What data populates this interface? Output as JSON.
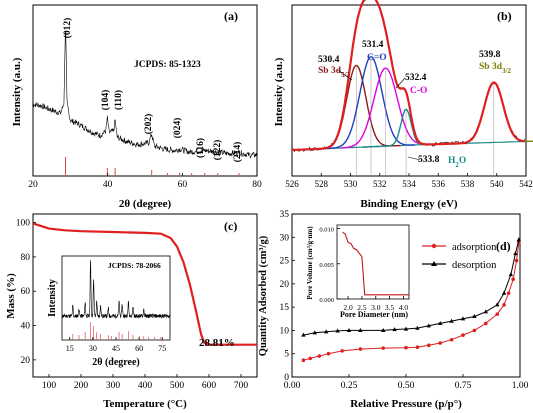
{
  "chart_data": [
    {
      "panel": "(a)",
      "type": "line",
      "xlabel": "2θ (degree)",
      "ylabel": "Intensity (a.u.)",
      "xlim": [
        20,
        80
      ],
      "xticks": [
        20,
        40,
        60,
        80
      ],
      "reference_label": "JCPDS: 85-1323",
      "peaks": [
        {
          "label": "(012)",
          "x": 28.7
        },
        {
          "label": "(104)",
          "x": 39.9
        },
        {
          "label": "(110)",
          "x": 42.0
        },
        {
          "label": "(202)",
          "x": 51.8
        },
        {
          "label": "(024)",
          "x": 59.3
        },
        {
          "label": "(116)",
          "x": 66.0
        },
        {
          "label": "(122)",
          "x": 69.5
        },
        {
          "label": "(214)",
          "x": 75.2
        }
      ],
      "series": [
        {
          "values_relative": [
            [
              20,
              0.44
            ],
            [
              22,
              0.43
            ],
            [
              24,
              0.41
            ],
            [
              26,
              0.39
            ],
            [
              27.5,
              0.38
            ],
            [
              28.3,
              0.45
            ],
            [
              28.7,
              1.0
            ],
            [
              29.1,
              0.45
            ],
            [
              30,
              0.33
            ],
            [
              32,
              0.31
            ],
            [
              34,
              0.28
            ],
            [
              36,
              0.25
            ],
            [
              38,
              0.23
            ],
            [
              39.5,
              0.26
            ],
            [
              39.9,
              0.35
            ],
            [
              40.4,
              0.25
            ],
            [
              41.6,
              0.26
            ],
            [
              42.0,
              0.34
            ],
            [
              42.5,
              0.22
            ],
            [
              45,
              0.19
            ],
            [
              48,
              0.17
            ],
            [
              51,
              0.18
            ],
            [
              51.8,
              0.24
            ],
            [
              52.5,
              0.16
            ],
            [
              55,
              0.14
            ],
            [
              58,
              0.13
            ],
            [
              59.3,
              0.14
            ],
            [
              62,
              0.12
            ],
            [
              66,
              0.13
            ],
            [
              69.5,
              0.12
            ],
            [
              72,
              0.11
            ],
            [
              75.2,
              0.115
            ],
            [
              78,
              0.1
            ],
            [
              80,
              0.1
            ]
          ]
        }
      ],
      "reference_lines": [
        {
          "x": 28.7,
          "h": 0.9
        },
        {
          "x": 39.9,
          "h": 0.35
        },
        {
          "x": 42.0,
          "h": 0.35
        },
        {
          "x": 51.8,
          "h": 0.25
        },
        {
          "x": 56.0,
          "h": 0.1
        },
        {
          "x": 59.3,
          "h": 0.12
        },
        {
          "x": 62.5,
          "h": 0.1
        },
        {
          "x": 66.0,
          "h": 0.1
        },
        {
          "x": 69.5,
          "h": 0.1
        },
        {
          "x": 75.2,
          "h": 0.1
        }
      ]
    },
    {
      "panel": "(b)",
      "type": "line",
      "xlabel": "Binding Energy (eV)",
      "ylabel": "Intensity (a.u.)",
      "xlim": [
        526,
        542
      ],
      "xticks": [
        526,
        528,
        530,
        532,
        534,
        536,
        538,
        540,
        542
      ],
      "peaks": [
        {
          "value": "530.4",
          "name": "Sb 3d",
          "sub": "5/2",
          "color": "#8b1a1a",
          "x": 530.4
        },
        {
          "value": "531.4",
          "name": "C=O",
          "color": "#1f3fbf",
          "x": 531.4
        },
        {
          "value": "532.4",
          "name": "C-O",
          "color": "#e000e0",
          "x": 532.4
        },
        {
          "value": "533.8",
          "name": "H",
          "sub": "2",
          "name_end": "O",
          "color": "#1a8a8a",
          "x": 533.8
        },
        {
          "value": "539.8",
          "name": "Sb 3d",
          "sub": "3/2",
          "color": "#7a7a00",
          "x": 539.8
        }
      ]
    },
    {
      "panel": "(c)",
      "type": "line",
      "xlabel": "Temperature (°C)",
      "ylabel": "Mass (%)",
      "xlim": [
        50,
        750
      ],
      "ylim": [
        10,
        105
      ],
      "xticks": [
        100,
        200,
        300,
        400,
        500,
        600,
        700
      ],
      "yticks": [
        20,
        40,
        60,
        80,
        100
      ],
      "annotation": "28.81%",
      "series": [
        {
          "points": [
            [
              50,
              99.5
            ],
            [
              100,
              96.5
            ],
            [
              150,
              95.5
            ],
            [
              200,
              95.0
            ],
            [
              300,
              94.5
            ],
            [
              400,
              94.0
            ],
            [
              450,
              93.5
            ],
            [
              480,
              91
            ],
            [
              500,
              86
            ],
            [
              520,
              77
            ],
            [
              540,
              64
            ],
            [
              560,
              48
            ],
            [
              575,
              35
            ],
            [
              585,
              30
            ],
            [
              600,
              28.9
            ],
            [
              700,
              28.8
            ],
            [
              750,
              28.8
            ]
          ],
          "color": "#e02020"
        }
      ],
      "inset": {
        "xlabel": "2θ (degree)",
        "ylabel": "Intensity",
        "reference_label": "JCPDS: 78-2066",
        "xlim": [
          10,
          80
        ],
        "xticks": [
          15,
          30,
          45,
          60,
          75
        ]
      }
    },
    {
      "panel": "(d)",
      "type": "line",
      "xlabel": "Relative Pressure (p/p°)",
      "ylabel": "Quantity Adsorbed (cm³/g)",
      "xlim": [
        0,
        1
      ],
      "ylim": [
        0,
        35
      ],
      "xticks": [
        0.0,
        0.25,
        0.5,
        0.75,
        1.0
      ],
      "yticks": [
        0,
        5,
        10,
        15,
        20,
        25,
        30,
        35
      ],
      "legend_position": "right",
      "series": [
        {
          "name": "adsorption",
          "color": "#e02020",
          "marker": "circle",
          "points": [
            [
              0.05,
              3.6
            ],
            [
              0.08,
              4.0
            ],
            [
              0.12,
              4.5
            ],
            [
              0.16,
              5.0
            ],
            [
              0.22,
              5.6
            ],
            [
              0.3,
              6.0
            ],
            [
              0.4,
              6.2
            ],
            [
              0.5,
              6.3
            ],
            [
              0.55,
              6.4
            ],
            [
              0.6,
              6.8
            ],
            [
              0.65,
              7.3
            ],
            [
              0.7,
              8.0
            ],
            [
              0.75,
              9.0
            ],
            [
              0.8,
              10.0
            ],
            [
              0.85,
              11.5
            ],
            [
              0.9,
              13.5
            ],
            [
              0.93,
              15.5
            ],
            [
              0.95,
              18.0
            ],
            [
              0.97,
              21.0
            ],
            [
              0.985,
              25.0
            ],
            [
              0.995,
              29.0
            ]
          ]
        },
        {
          "name": "desorption",
          "color": "#000000",
          "marker": "triangle",
          "points": [
            [
              0.995,
              29.5
            ],
            [
              0.98,
              26.5
            ],
            [
              0.96,
              22.0
            ],
            [
              0.93,
              18.0
            ],
            [
              0.9,
              15.5
            ],
            [
              0.85,
              14.0
            ],
            [
              0.8,
              13.0
            ],
            [
              0.75,
              12.5
            ],
            [
              0.7,
              12.0
            ],
            [
              0.65,
              11.5
            ],
            [
              0.6,
              11.0
            ],
            [
              0.55,
              10.5
            ],
            [
              0.5,
              10.3
            ],
            [
              0.45,
              10.2
            ],
            [
              0.4,
              10.0
            ],
            [
              0.3,
              10.0
            ],
            [
              0.25,
              10.0
            ],
            [
              0.2,
              9.9
            ],
            [
              0.15,
              9.7
            ],
            [
              0.1,
              9.5
            ],
            [
              0.05,
              9.0
            ]
          ]
        }
      ],
      "inset": {
        "xlabel": "Pore Diameter (nm)",
        "ylabel": "Pore Volume (cm³/g·nm)",
        "xlim": [
          1.6,
          4.2
        ],
        "ylim": [
          0,
          0.01
        ],
        "xticks": [
          2.0,
          2.5,
          3.0,
          3.5,
          4.0
        ],
        "yticks": [
          0.0,
          0.005,
          0.01
        ],
        "series": [
          {
            "color": "#c01818",
            "points": [
              [
                1.8,
                0.0095
              ],
              [
                1.9,
                0.0092
              ],
              [
                2.0,
                0.008
              ],
              [
                2.1,
                0.0079
              ],
              [
                2.2,
                0.0072
              ],
              [
                2.3,
                0.007
              ],
              [
                2.5,
                0.006
              ],
              [
                2.6,
                0.0006
              ],
              [
                4.2,
                0.0006
              ]
            ]
          }
        ]
      }
    }
  ]
}
